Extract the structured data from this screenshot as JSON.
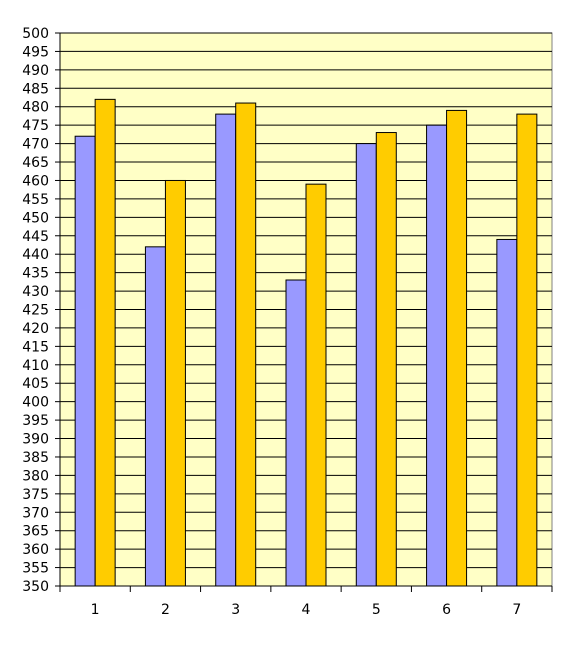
{
  "chart_data": {
    "type": "bar",
    "categories": [
      "1",
      "2",
      "3",
      "4",
      "5",
      "6",
      "7"
    ],
    "series": [
      {
        "values": [
          472,
          442,
          478,
          433,
          470,
          475,
          444
        ]
      },
      {
        "values": [
          482,
          460,
          481,
          459,
          473,
          479,
          478
        ]
      }
    ],
    "ylim": [
      350,
      500
    ],
    "y_ticks": [
      "350",
      "355",
      "360",
      "365",
      "370",
      "375",
      "380",
      "385",
      "390",
      "395",
      "400",
      "405",
      "410",
      "415",
      "420",
      "425",
      "430",
      "435",
      "440",
      "445",
      "450",
      "455",
      "460",
      "465",
      "470",
      "475",
      "480",
      "485",
      "490",
      "495",
      "500"
    ],
    "title": "",
    "xlabel": "",
    "ylabel": "",
    "grid": true,
    "legend": "none"
  },
  "colors": {
    "plot_background": "#ffffc6",
    "gridline": "#000000",
    "series": [
      "#9999ff",
      "#ffcc00"
    ],
    "bar_border": "#000000"
  }
}
